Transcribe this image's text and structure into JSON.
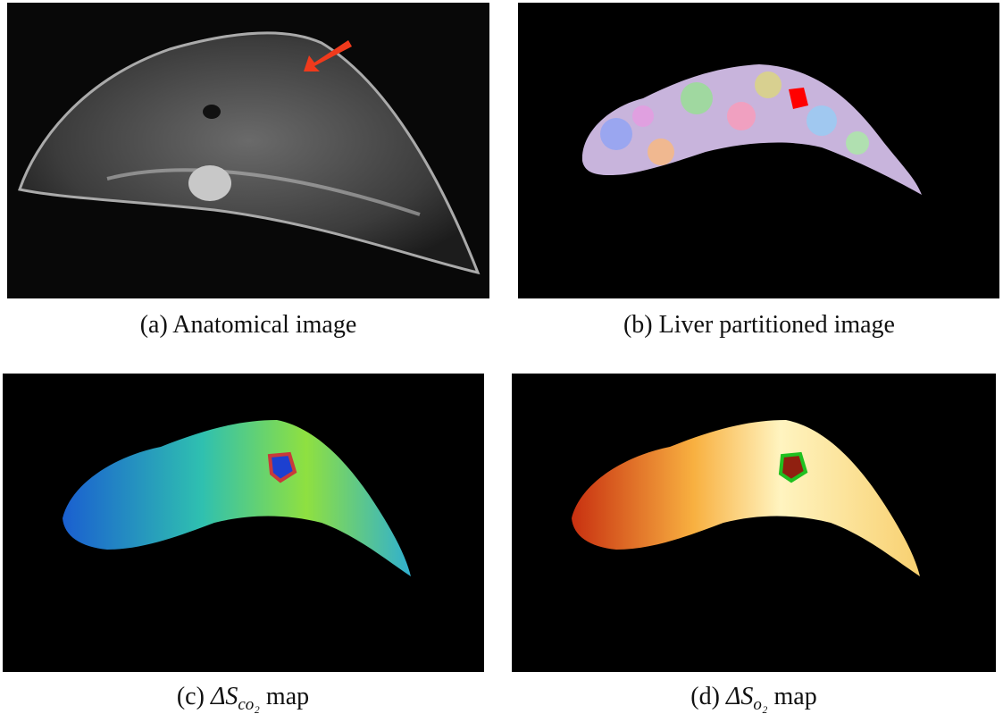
{
  "panels": [
    {
      "label": "(a)",
      "caption": "Anatomical image"
    },
    {
      "label": "(b)",
      "caption": "Liver partitioned image"
    },
    {
      "label": "(c)",
      "symbol": "ΔS",
      "subscript": "co₂",
      "caption": "map"
    },
    {
      "label": "(d)",
      "symbol": "ΔS",
      "subscript": "o₂",
      "caption": "map"
    }
  ]
}
